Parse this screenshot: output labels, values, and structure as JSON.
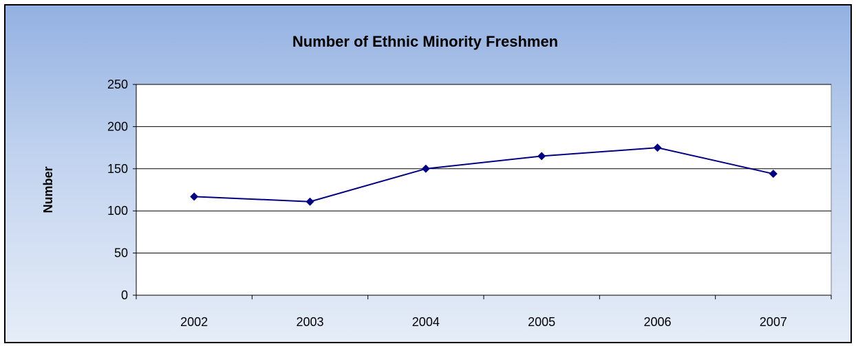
{
  "chart_data": {
    "type": "line",
    "title": "Number of Ethnic Minority Freshmen",
    "xlabel": "",
    "ylabel": "Number",
    "categories": [
      "2002",
      "2003",
      "2004",
      "2005",
      "2006",
      "2007"
    ],
    "series": [
      {
        "values": [
          117,
          111,
          150,
          165,
          175,
          144
        ]
      }
    ],
    "ylim": [
      0,
      250
    ],
    "yticks": [
      0,
      50,
      100,
      150,
      200,
      250
    ],
    "grid": true,
    "legend": "none",
    "colors": {
      "line": "#000080",
      "marker": "#000080",
      "gridline": "#000000",
      "plot_background": "#ffffff"
    }
  }
}
